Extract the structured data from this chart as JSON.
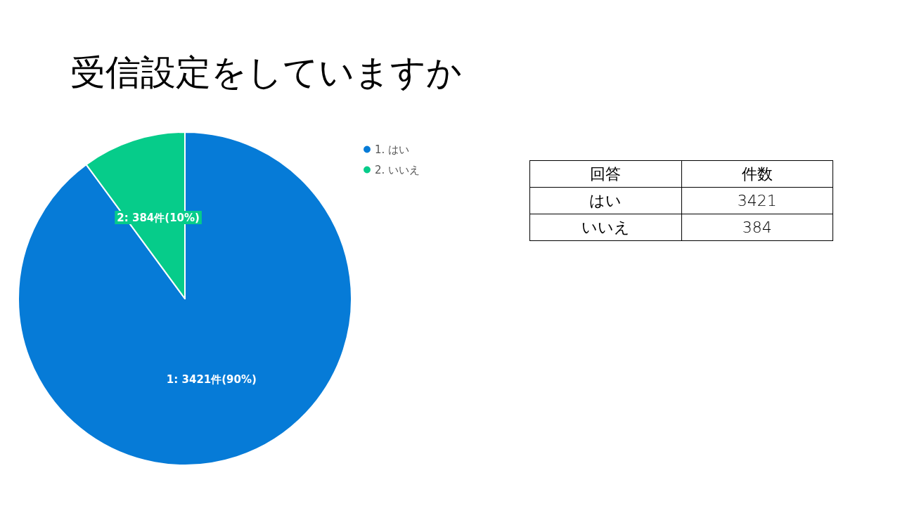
{
  "chart_data": [
    {
      "type": "pie",
      "title": "受信設定をしていますか",
      "categories": [
        "1. はい",
        "2. いいえ"
      ],
      "values": [
        3421,
        384
      ],
      "colors": [
        "#067bd7",
        "#06cc8a"
      ],
      "value_labels": [
        "1: 3421件(90%)",
        "2: 384件(10%)"
      ],
      "legend": "top right"
    },
    {
      "type": "other",
      "annotations": [
        "回答",
        "件数"
      ],
      "categories": [
        "はい",
        "いいえ"
      ],
      "values": [
        3421,
        384
      ],
      "data_labels": true
    }
  ]
}
